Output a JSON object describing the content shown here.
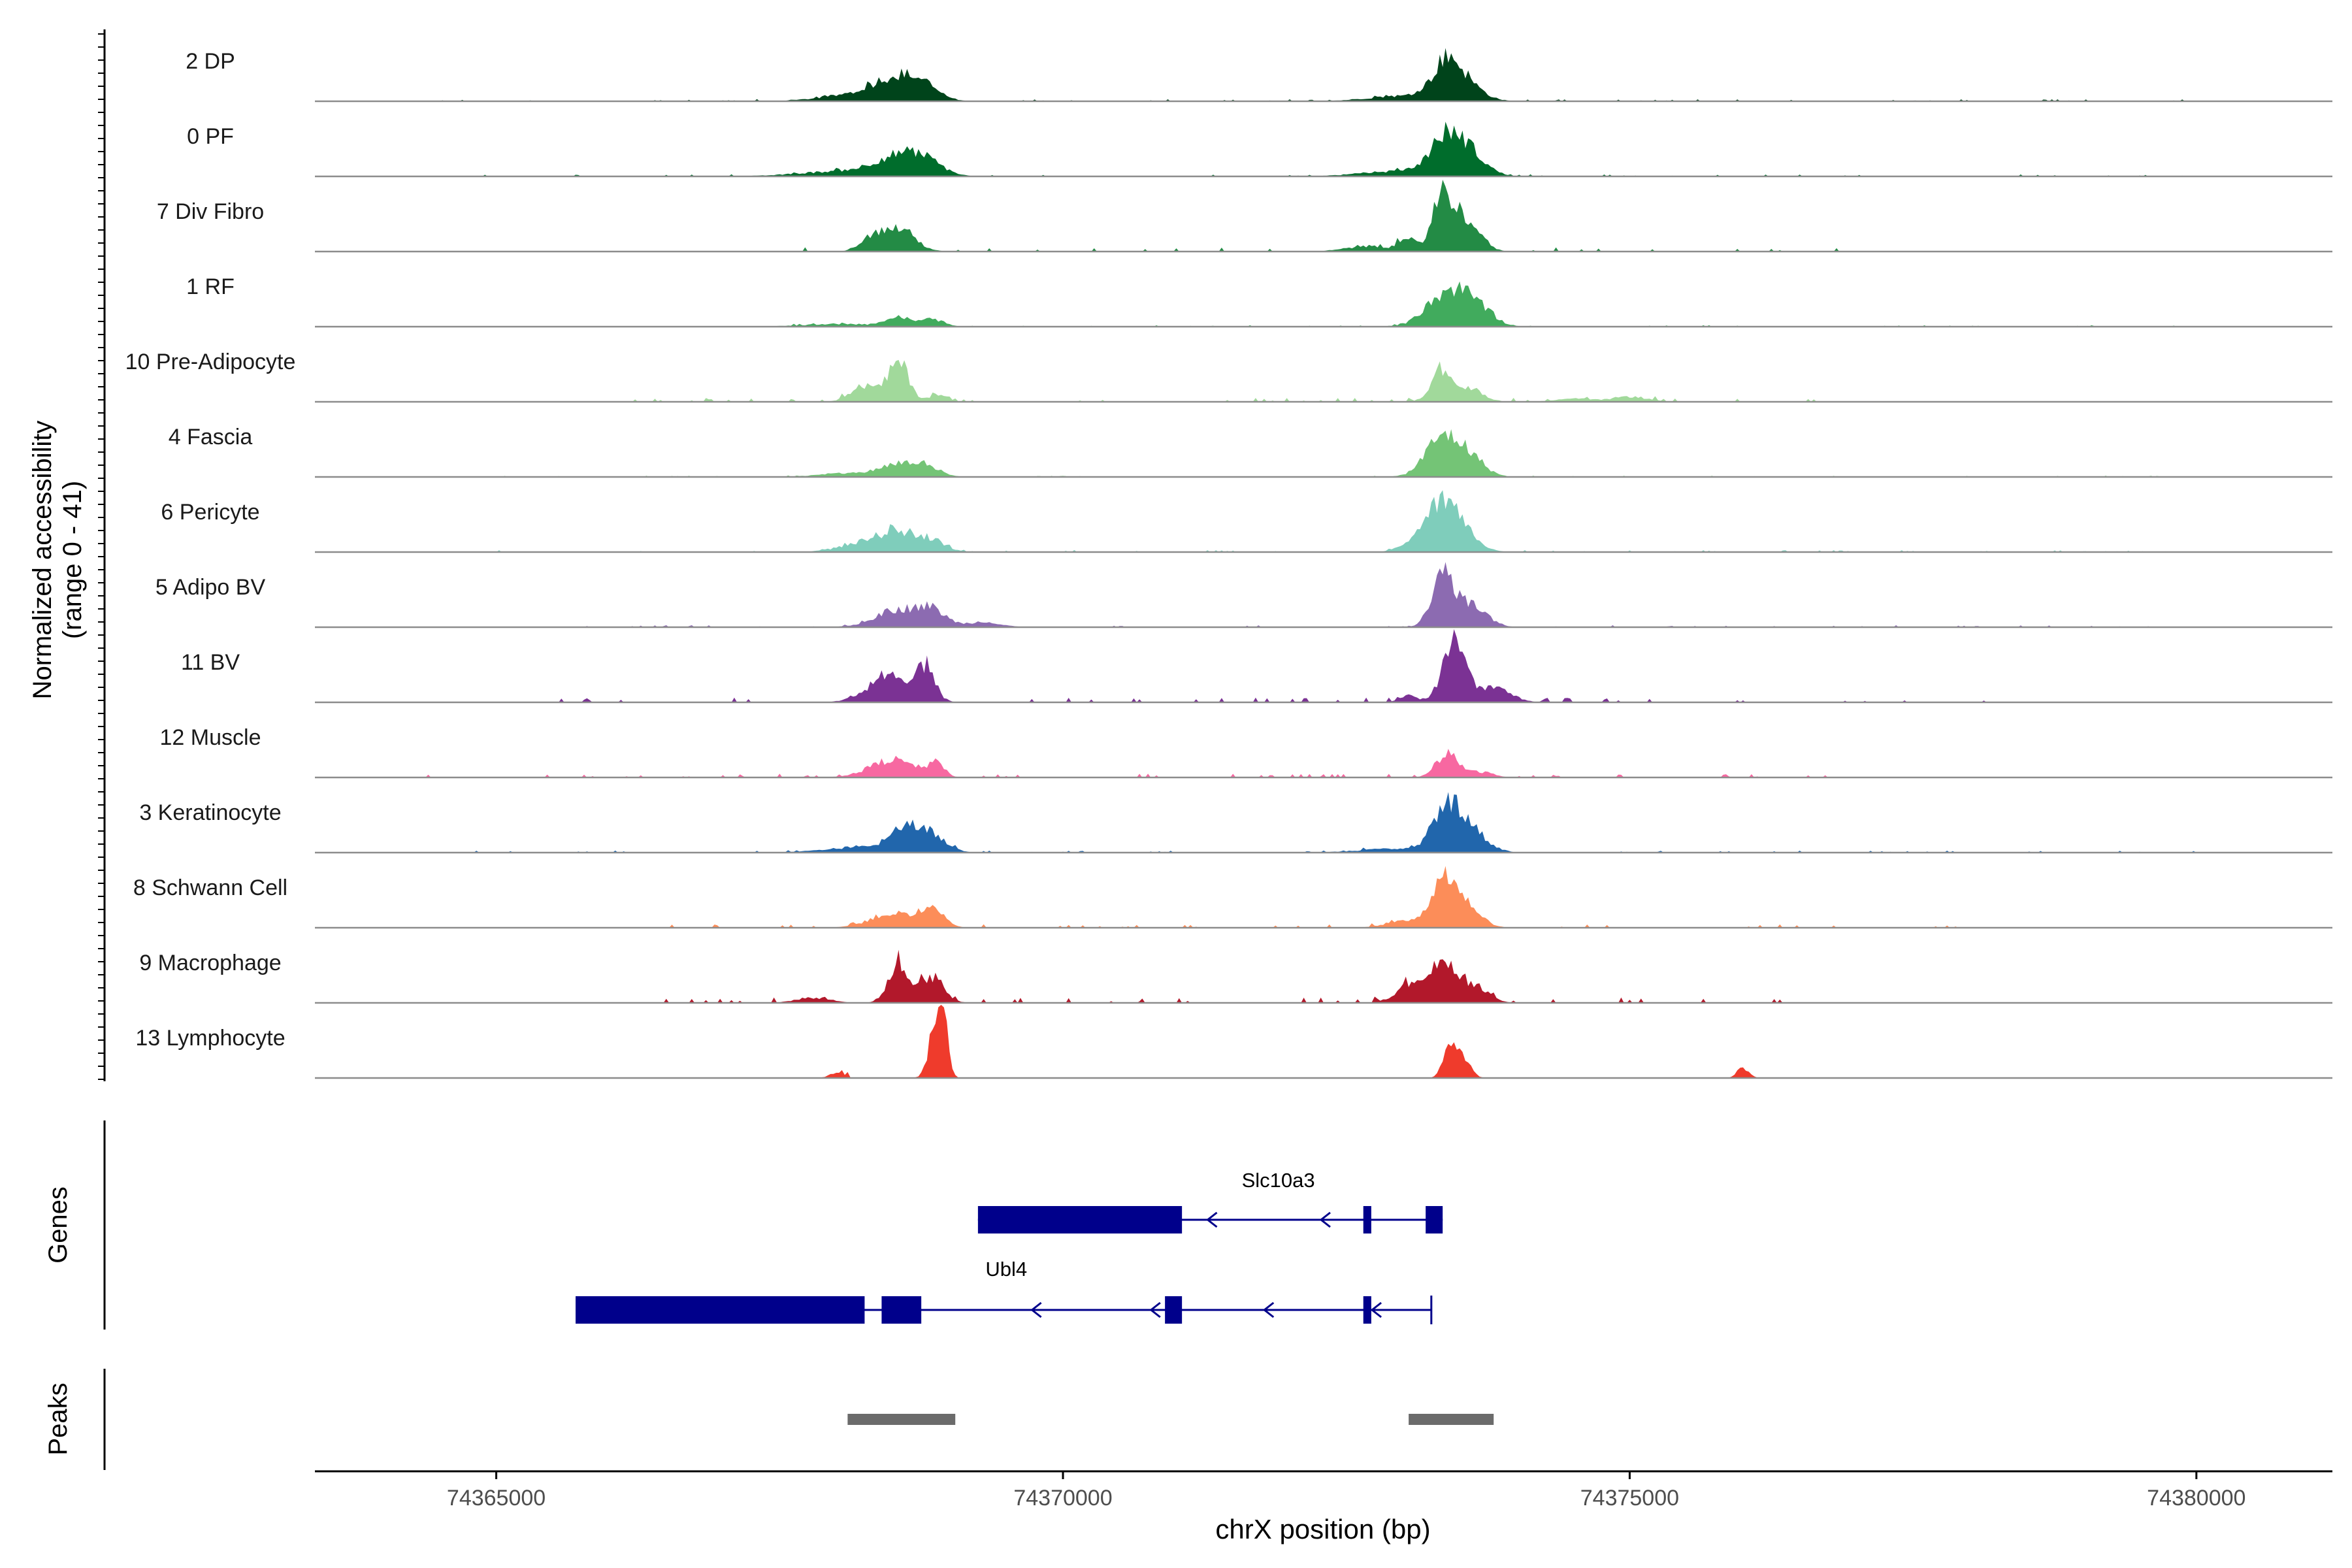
{
  "chart_data": {
    "type": "area",
    "title": "",
    "xlabel": "chrX position (bp)",
    "ylabel": "Normalized accessibility\n(range 0 - 41)",
    "y_range": [
      0,
      41
    ],
    "xlim": [
      74363400,
      74381200
    ],
    "x_ticks": [
      74365000,
      74370000,
      74375000,
      74380000
    ],
    "x_tick_labels": [
      "74365000",
      "74370000",
      "74375000",
      "74380000"
    ],
    "panel_labels": {
      "genes": "Genes",
      "peaks": "Peaks"
    },
    "series": [
      {
        "name": "2 DP",
        "color": "#00441b",
        "peaks": [
          [
            74368500,
            10,
            180
          ],
          [
            74368750,
            8,
            150
          ],
          [
            74368200,
            4,
            300
          ],
          [
            74373380,
            19,
            120
          ],
          [
            74373550,
            9,
            150
          ],
          [
            74373000,
            3,
            300
          ]
        ],
        "noise": [
          [
            74364200,
            74380000,
            0.8
          ]
        ]
      },
      {
        "name": "0 PF",
        "color": "#006d2c",
        "peaks": [
          [
            74368550,
            10,
            200
          ],
          [
            74368800,
            6,
            150
          ],
          [
            74368100,
            3,
            400
          ],
          [
            74373380,
            19,
            140
          ],
          [
            74373580,
            11,
            150
          ],
          [
            74373000,
            3,
            350
          ]
        ],
        "noise": [
          [
            74364500,
            74380000,
            0.8
          ]
        ]
      },
      {
        "name": "7 Div Fibro",
        "color": "#238b45",
        "peaks": [
          [
            74368550,
            13,
            140
          ],
          [
            74368300,
            7,
            100
          ],
          [
            74373350,
            30,
            90
          ],
          [
            74373560,
            18,
            120
          ],
          [
            74373050,
            6,
            80
          ],
          [
            74372700,
            3,
            200
          ]
        ],
        "noise": [
          [
            74366500,
            74378000,
            1.8
          ]
        ]
      },
      {
        "name": "1 RF",
        "color": "#41ab5d",
        "peaks": [
          [
            74368550,
            5,
            120
          ],
          [
            74368850,
            4,
            100
          ],
          [
            74368000,
            1.5,
            300
          ],
          [
            74373400,
            19,
            180
          ],
          [
            74373650,
            8,
            150
          ]
        ],
        "noise": [
          [
            74366500,
            74380000,
            0.6
          ]
        ]
      },
      {
        "name": "10 Pre-Adipocyte",
        "color": "#a1d99b",
        "peaks": [
          [
            74368550,
            22,
            90
          ],
          [
            74368250,
            9,
            120
          ],
          [
            74368900,
            4,
            80
          ],
          [
            74373350,
            17,
            100
          ],
          [
            74373600,
            6,
            120
          ],
          [
            74375000,
            3,
            150
          ],
          [
            74374500,
            2,
            150
          ]
        ],
        "noise": [
          [
            74366000,
            74377000,
            1.6
          ]
        ]
      },
      {
        "name": "4 Fascia",
        "color": "#74c476",
        "peaks": [
          [
            74368550,
            7,
            160
          ],
          [
            74368800,
            5,
            120
          ],
          [
            74368100,
            2,
            250
          ],
          [
            74373350,
            22,
            150
          ],
          [
            74373600,
            9,
            130
          ]
        ],
        "noise": [
          [
            74364500,
            74380000,
            0.5
          ]
        ]
      },
      {
        "name": "6 Pericyte",
        "color": "#7fcdbb",
        "peaks": [
          [
            74368550,
            11,
            180
          ],
          [
            74368850,
            5,
            120
          ],
          [
            74368200,
            4,
            200
          ],
          [
            74373380,
            23,
            130
          ],
          [
            74373200,
            10,
            150
          ],
          [
            74373600,
            6,
            120
          ]
        ],
        "noise": [
          [
            74364500,
            74380000,
            0.8
          ]
        ]
      },
      {
        "name": "5 Adipo BV",
        "color": "#8c6bb1",
        "peaks": [
          [
            74368550,
            10,
            200
          ],
          [
            74368850,
            8,
            120
          ],
          [
            74369300,
            3,
            150
          ],
          [
            74373350,
            28,
            100
          ],
          [
            74373600,
            12,
            140
          ]
        ],
        "noise": [
          [
            74365500,
            74380000,
            0.8
          ]
        ]
      },
      {
        "name": "11 BV",
        "color": "#7b3294",
        "peaks": [
          [
            74368500,
            15,
            200
          ],
          [
            74368800,
            17,
            70
          ],
          [
            74373450,
            33,
            100
          ],
          [
            74373800,
            8,
            150
          ],
          [
            74373050,
            4,
            80
          ]
        ],
        "noise": [
          [
            74365000,
            74378500,
            2
          ]
        ]
      },
      {
        "name": "12 Muscle",
        "color": "#f768a1",
        "peaks": [
          [
            74368500,
            10,
            200
          ],
          [
            74368880,
            7,
            70
          ],
          [
            74373400,
            13,
            100
          ],
          [
            74373700,
            3,
            100
          ]
        ],
        "noise": [
          [
            74364200,
            74377000,
            1.5
          ]
        ]
      },
      {
        "name": "3 Keratinocyte",
        "color": "#2166ac",
        "peaks": [
          [
            74368650,
            15,
            150
          ],
          [
            74368900,
            5,
            120
          ],
          [
            74368200,
            3,
            300
          ],
          [
            74373400,
            24,
            130
          ],
          [
            74373600,
            10,
            150
          ],
          [
            74372900,
            2,
            300
          ]
        ],
        "noise": [
          [
            74364500,
            74380300,
            0.8
          ]
        ]
      },
      {
        "name": "8 Schwann Cell",
        "color": "#fc8d59",
        "peaks": [
          [
            74368500,
            8,
            200
          ],
          [
            74368850,
            9,
            100
          ],
          [
            74373350,
            26,
            100
          ],
          [
            74373550,
            12,
            130
          ],
          [
            74373000,
            4,
            150
          ]
        ],
        "noise": [
          [
            74366500,
            74378000,
            1.4
          ]
        ]
      },
      {
        "name": "9 Macrophage",
        "color": "#b2182b",
        "peaks": [
          [
            74368550,
            22,
            90
          ],
          [
            74368850,
            15,
            100
          ],
          [
            74367800,
            3,
            150
          ],
          [
            74373400,
            20,
            150
          ],
          [
            74373100,
            10,
            150
          ],
          [
            74373700,
            5,
            100
          ]
        ],
        "noise": [
          [
            74366500,
            74376500,
            2.2
          ]
        ]
      },
      {
        "name": "13 Lymphocyte",
        "color": "#ef3b2c",
        "peaks": [
          [
            74368880,
            32,
            60
          ],
          [
            74368950,
            20,
            40
          ],
          [
            74373420,
            21,
            60
          ],
          [
            74373550,
            8,
            60
          ],
          [
            74376000,
            6,
            50
          ],
          [
            74368000,
            3,
            60
          ]
        ],
        "noise": [
          [
            74368000,
            74368200,
            2
          ]
        ]
      }
    ],
    "genes": [
      {
        "name": "Slc10a3",
        "strand": "-",
        "line": [
          74369250,
          74373350
        ],
        "exons": [
          [
            74369250,
            74371050
          ],
          [
            74372650,
            74372720
          ],
          [
            74373200,
            74373350
          ]
        ],
        "arrows": [
          74371300,
          74372300
        ]
      },
      {
        "name": "Ubl4",
        "strand": "-",
        "line": [
          74365700,
          74373250
        ],
        "exons": [
          [
            74365700,
            74368250
          ],
          [
            74368400,
            74368750
          ],
          [
            74370900,
            74371050
          ],
          [
            74372650,
            74372720
          ]
        ],
        "arrows": [
          74369750,
          74370800,
          74371800,
          74372750
        ]
      }
    ],
    "peak_regions": [
      [
        74368100,
        74369050
      ],
      [
        74373050,
        74373800
      ]
    ]
  }
}
